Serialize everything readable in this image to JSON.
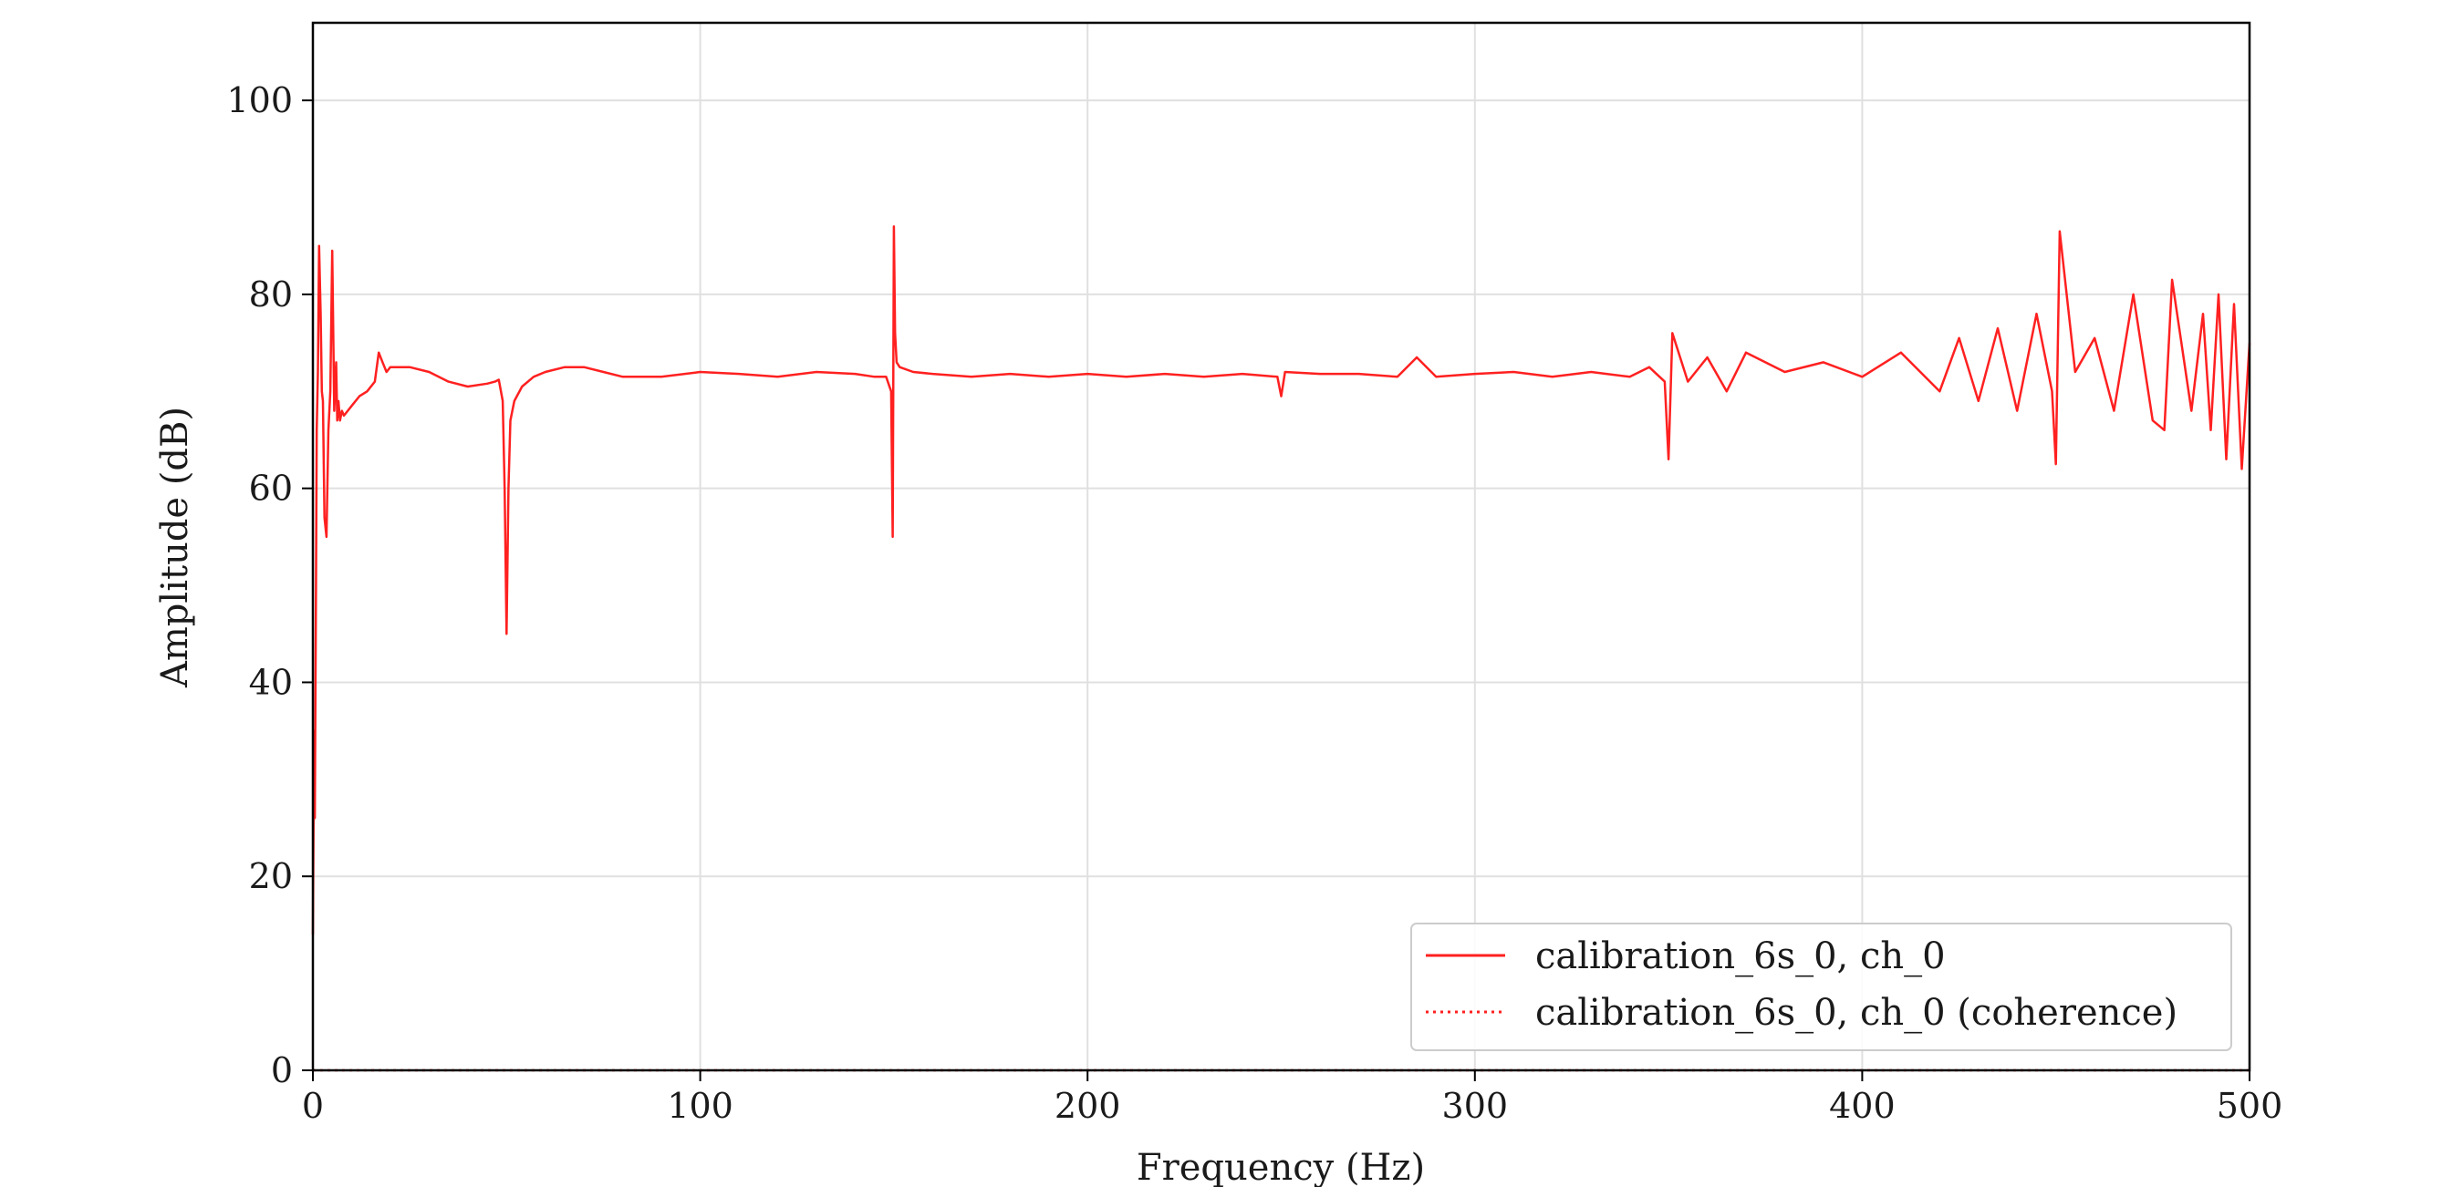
{
  "chart_data": {
    "type": "line",
    "title": "",
    "xlabel": "Frequency (Hz)",
    "ylabel": "Amplitude (dB)",
    "xlim": [
      0,
      500
    ],
    "ylim": [
      0,
      108
    ],
    "xticks": [
      0,
      100,
      200,
      300,
      400,
      500
    ],
    "yticks": [
      0,
      20,
      40,
      60,
      80,
      100
    ],
    "grid": true,
    "legend_position": "lower-right",
    "color": "#ff2020",
    "series": [
      {
        "name": "calibration_6s_0, ch_0",
        "style": "solid",
        "x": [
          0,
          0.3,
          0.5,
          0.8,
          1,
          1.3,
          1.6,
          2,
          2.3,
          2.6,
          3,
          3.5,
          4,
          4.5,
          5,
          5.5,
          6,
          6.3,
          6.6,
          7,
          7.5,
          8,
          9,
          10,
          12,
          14,
          16,
          17,
          18,
          19,
          20,
          25,
          30,
          35,
          40,
          45,
          47,
          48,
          49,
          49.5,
          50,
          50.5,
          51,
          52,
          54,
          57,
          60,
          65,
          70,
          75,
          80,
          90,
          100,
          110,
          120,
          130,
          140,
          145,
          148,
          149.3,
          149.7,
          150,
          150.3,
          150.7,
          151.5,
          155,
          160,
          170,
          180,
          190,
          200,
          210,
          220,
          230,
          240,
          249,
          250,
          251,
          260,
          270,
          280,
          285,
          290,
          300,
          310,
          320,
          330,
          340,
          345,
          349,
          350,
          351,
          355,
          360,
          365,
          370,
          380,
          390,
          400,
          410,
          420,
          425,
          430,
          435,
          440,
          445,
          449,
          450,
          451,
          455,
          460,
          465,
          470,
          475,
          478,
          480,
          485,
          488,
          490,
          492,
          494,
          496,
          498,
          500
        ],
        "y": [
          14,
          35,
          26,
          50,
          66,
          72,
          85,
          78,
          70,
          69,
          57,
          55,
          66,
          70,
          84.5,
          68,
          73,
          67,
          69,
          67,
          68,
          67.5,
          68,
          68.5,
          69.5,
          70,
          71,
          74,
          73,
          72,
          72.5,
          72.5,
          72,
          71,
          70.5,
          70.8,
          71,
          71.2,
          69,
          60,
          45,
          60,
          67,
          69,
          70.5,
          71.5,
          72,
          72.5,
          72.5,
          72,
          71.5,
          71.5,
          72,
          71.8,
          71.5,
          72,
          71.8,
          71.5,
          71.5,
          70,
          55,
          87,
          76,
          73,
          72.5,
          72,
          71.8,
          71.5,
          71.8,
          71.5,
          71.8,
          71.5,
          71.8,
          71.5,
          71.8,
          71.5,
          69.5,
          72,
          71.8,
          71.8,
          71.5,
          73.5,
          71.5,
          71.8,
          72,
          71.5,
          72,
          71.5,
          72.5,
          71,
          63,
          76,
          71,
          73.5,
          70,
          74,
          72,
          73,
          71.5,
          74,
          70,
          75.5,
          69,
          76.5,
          68,
          78,
          70,
          62.5,
          86.5,
          72,
          75.5,
          68,
          80,
          67,
          66,
          81.5,
          68,
          78,
          66,
          80,
          63,
          79,
          62,
          75
        ]
      },
      {
        "name": "calibration_6s_0, ch_0 (coherence)",
        "style": "dotted",
        "x": [
          0,
          500
        ],
        "y": [
          0,
          0
        ]
      }
    ]
  }
}
